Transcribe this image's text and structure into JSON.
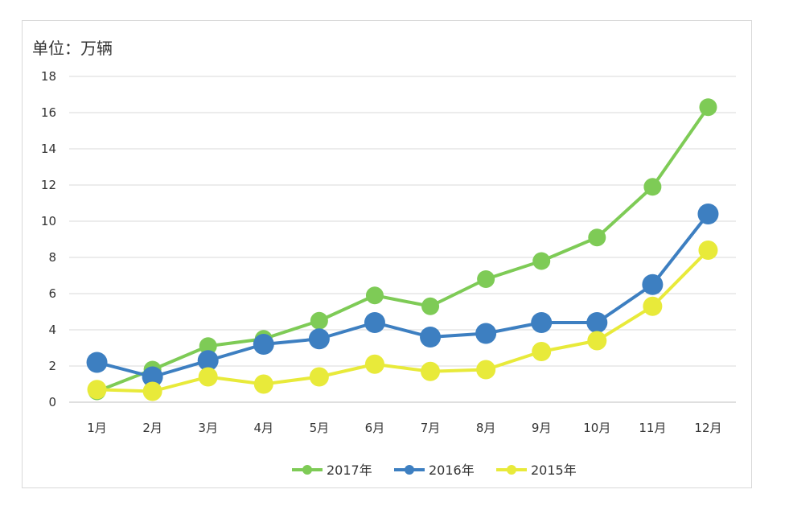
{
  "chart_data": {
    "type": "line",
    "unit_label": "单位：万辆",
    "categories": [
      "1月",
      "2月",
      "3月",
      "4月",
      "5月",
      "6月",
      "7月",
      "8月",
      "9月",
      "10月",
      "11月",
      "12月"
    ],
    "y_ticks": [
      "0",
      "2",
      "4",
      "6",
      "8",
      "10",
      "12",
      "14",
      "16",
      "18"
    ],
    "ylim": [
      0,
      18
    ],
    "grid": true,
    "legend_position": "bottom",
    "series": [
      {
        "name": "2017年",
        "color": "#7ecb56",
        "values": [
          0.6,
          1.8,
          3.1,
          3.5,
          4.5,
          5.9,
          5.3,
          6.8,
          7.8,
          9.1,
          11.9,
          16.3
        ]
      },
      {
        "name": "2016年",
        "color": "#3d7fc1",
        "values": [
          2.2,
          1.4,
          2.3,
          3.2,
          3.5,
          4.4,
          3.6,
          3.8,
          4.4,
          4.4,
          6.5,
          10.4
        ]
      },
      {
        "name": "2015年",
        "color": "#e8ea3a",
        "values": [
          0.7,
          0.6,
          1.4,
          1.0,
          1.4,
          2.1,
          1.7,
          1.8,
          2.8,
          3.4,
          5.3,
          8.4
        ]
      }
    ]
  }
}
